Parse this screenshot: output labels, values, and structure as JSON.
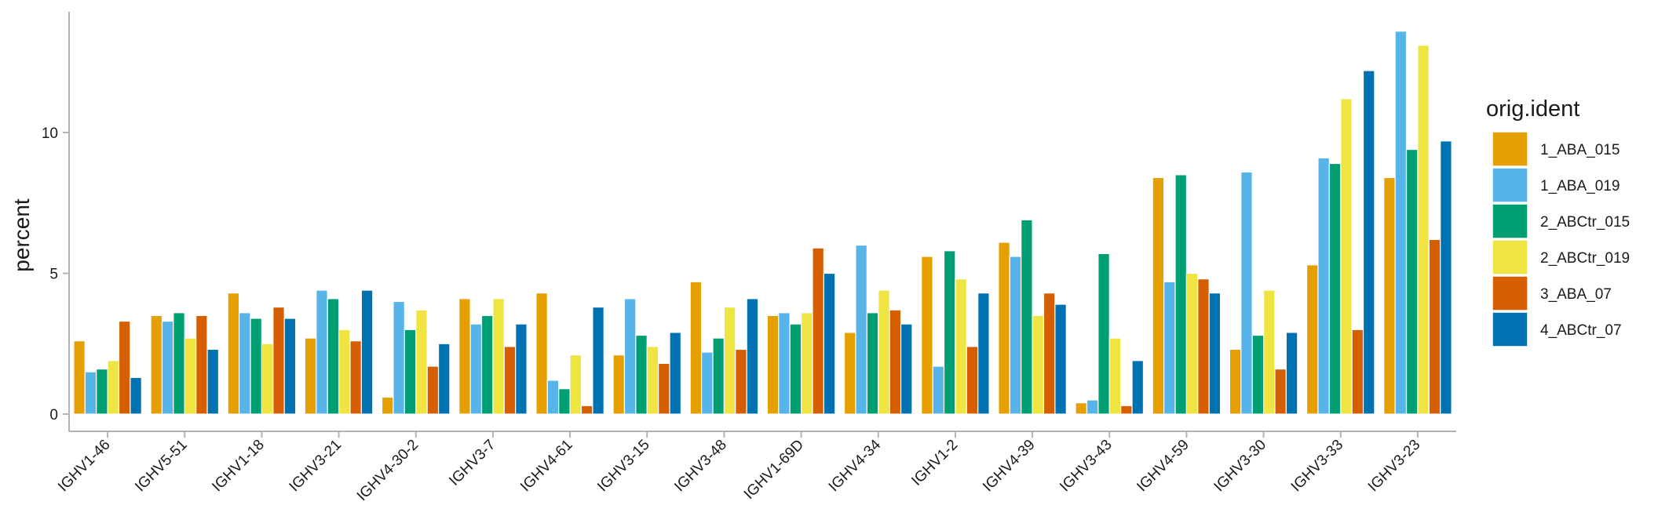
{
  "chart_data": {
    "type": "bar",
    "title": "",
    "xlabel": "",
    "ylabel": "percent",
    "ylim": [
      0,
      14.3
    ],
    "yticks": [
      0,
      5,
      10
    ],
    "grid": false,
    "legend_position": "right",
    "legend_title": "orig.ident",
    "categories": [
      "IGHV1-46",
      "IGHV5-51",
      "IGHV1-18",
      "IGHV3-21",
      "IGHV4-30-2",
      "IGHV3-7",
      "IGHV4-61",
      "IGHV3-15",
      "IGHV3-48",
      "IGHV1-69D",
      "IGHV4-34",
      "IGHV1-2",
      "IGHV4-39",
      "IGHV3-43",
      "IGHV4-59",
      "IGHV3-30",
      "IGHV3-33",
      "IGHV3-23"
    ],
    "series": [
      {
        "name": "1_ABA_015",
        "color": "#E69F00",
        "values": [
          2.6,
          3.5,
          4.3,
          2.7,
          0.6,
          4.1,
          4.3,
          2.1,
          4.7,
          3.5,
          2.9,
          5.6,
          6.1,
          0.4,
          8.4,
          2.3,
          5.3,
          8.4
        ]
      },
      {
        "name": "1_ABA_019",
        "color": "#56B4E9",
        "values": [
          1.5,
          3.3,
          3.6,
          4.4,
          4.0,
          3.2,
          1.2,
          4.1,
          2.2,
          3.6,
          6.0,
          1.7,
          5.6,
          0.5,
          4.7,
          8.6,
          9.1,
          13.6
        ]
      },
      {
        "name": "2_ABCtr_015",
        "color": "#009E73",
        "values": [
          1.6,
          3.6,
          3.4,
          4.1,
          3.0,
          3.5,
          0.9,
          2.8,
          2.7,
          3.2,
          3.6,
          5.8,
          6.9,
          5.7,
          8.5,
          2.8,
          8.9,
          9.4
        ]
      },
      {
        "name": "2_ABCtr_019",
        "color": "#F0E442",
        "values": [
          1.9,
          2.7,
          2.5,
          3.0,
          3.7,
          4.1,
          2.1,
          2.4,
          3.8,
          3.6,
          4.4,
          4.8,
          3.5,
          2.7,
          5.0,
          4.4,
          11.2,
          13.1
        ]
      },
      {
        "name": "3_ABA_07",
        "color": "#D55E00",
        "values": [
          3.3,
          3.5,
          3.8,
          2.6,
          1.7,
          2.4,
          0.3,
          1.8,
          2.3,
          5.9,
          3.7,
          2.4,
          4.3,
          0.3,
          4.8,
          1.6,
          3.0,
          6.2
        ]
      },
      {
        "name": "4_ABCtr_07",
        "color": "#0072B2",
        "values": [
          1.3,
          2.3,
          3.4,
          4.4,
          2.5,
          3.2,
          3.8,
          2.9,
          4.1,
          5.0,
          3.2,
          4.3,
          3.9,
          1.9,
          4.3,
          2.9,
          12.2,
          9.7
        ]
      }
    ]
  }
}
